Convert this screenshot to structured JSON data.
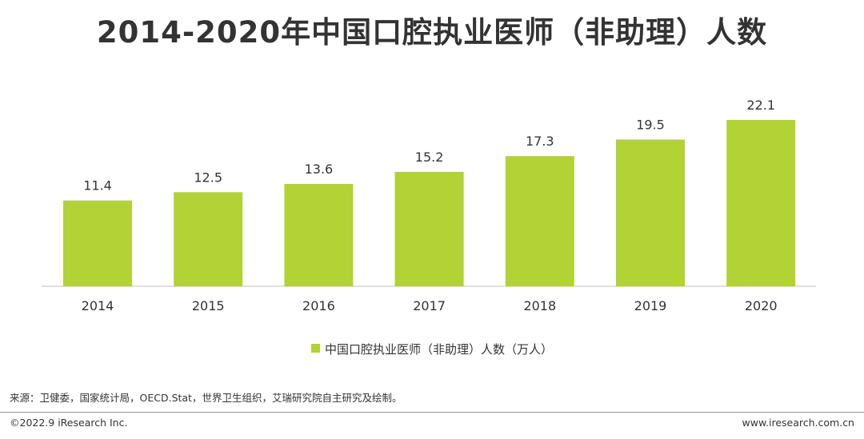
{
  "chart_data": {
    "type": "bar",
    "title": "2014-2020年中国口腔执业医师（非助理）人数",
    "categories": [
      "2014",
      "2015",
      "2016",
      "2017",
      "2018",
      "2019",
      "2020"
    ],
    "series": [
      {
        "name": "中国口腔执业医师（非助理）人数（万人）",
        "values": [
          11.4,
          12.5,
          13.6,
          15.2,
          17.3,
          19.5,
          22.1
        ]
      }
    ],
    "ylim": [
      0,
      22.1
    ],
    "xlabel": "",
    "ylabel": "",
    "grid": false,
    "legend": "bottom-center"
  },
  "colors": {
    "bar": "#b2d235",
    "text": "#333333",
    "axis": "#bfbfbf"
  },
  "footer": {
    "source": "来源：卫健委，国家统计局，OECD.Stat，世界卫生组织，艾瑞研究院自主研究及绘制。",
    "copyright": "©2022.9 iResearch Inc.",
    "website": "www.iresearch.com.cn"
  }
}
